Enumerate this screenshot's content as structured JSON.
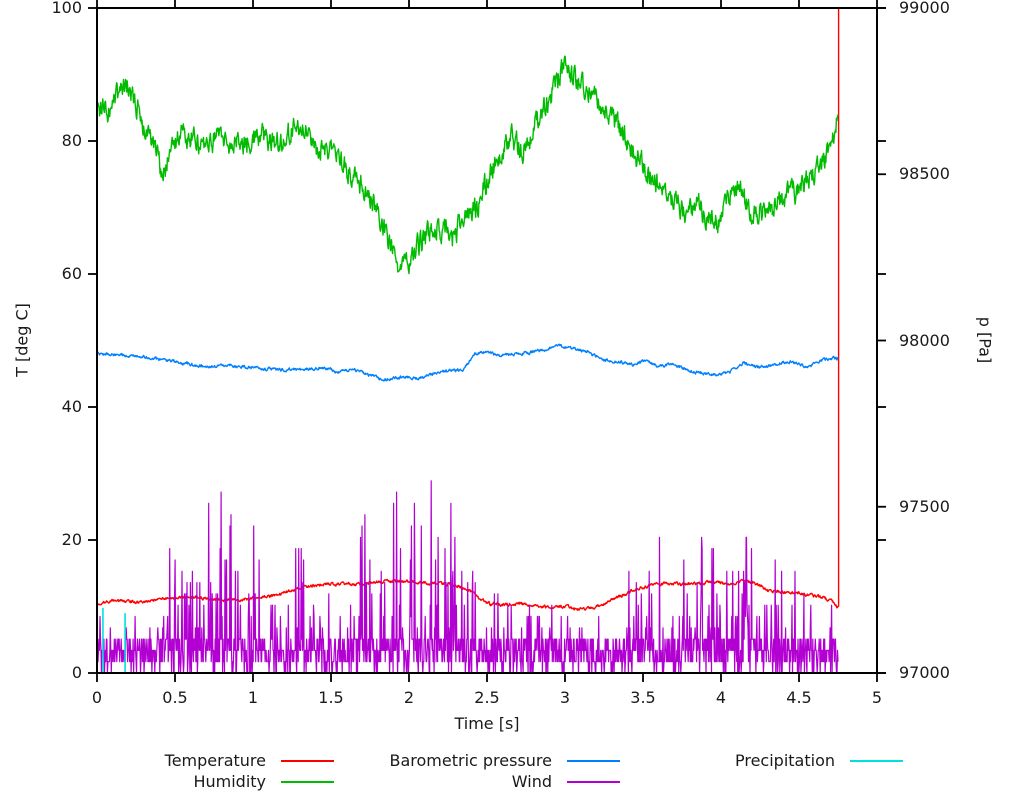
{
  "chart_data": {
    "type": "line",
    "title": "",
    "xlabel": "Time [s]",
    "ylabel_left": "T [deg C]",
    "ylabel_right": "p [Pa]",
    "x_range": [
      0,
      5
    ],
    "x_ticks": [
      0,
      0.5,
      1,
      1.5,
      2,
      2.5,
      3,
      3.5,
      4,
      4.5,
      5
    ],
    "x_tick_labels": [
      "0",
      "0.5",
      "1",
      "1.5",
      "2",
      "2.5",
      "3",
      "3.5",
      "4",
      "4.5",
      "5"
    ],
    "y_left_range": [
      0,
      100
    ],
    "y_left_ticks": [
      0,
      20,
      40,
      60,
      80,
      100
    ],
    "y_left_tick_labels": [
      "0",
      "20",
      "40",
      "60",
      "80",
      "100"
    ],
    "y_right_range": [
      97000,
      99000
    ],
    "y_right_ticks": [
      97000,
      97500,
      98000,
      98500,
      99000
    ],
    "y_right_tick_labels": [
      "97000",
      "97500",
      "98000",
      "98500",
      "99000"
    ],
    "grid": false,
    "legend_position": "bottom",
    "data_end_t": 4.75,
    "axis_color": "#000000",
    "series": [
      {
        "name": "Temperature",
        "color": "#ff0000",
        "axis": "left",
        "style": "noisy-line",
        "noise": 0.18,
        "end_spike": 100,
        "keypoints": [
          [
            0,
            10.4
          ],
          [
            0.1,
            10.9
          ],
          [
            0.2,
            10.8
          ],
          [
            0.3,
            10.6
          ],
          [
            0.4,
            11.1
          ],
          [
            0.5,
            11.3
          ],
          [
            0.6,
            11.4
          ],
          [
            0.7,
            11.2
          ],
          [
            0.8,
            11.0
          ],
          [
            0.9,
            11.0
          ],
          [
            1.0,
            11.2
          ],
          [
            1.1,
            11.5
          ],
          [
            1.2,
            12.1
          ],
          [
            1.3,
            12.8
          ],
          [
            1.4,
            13.2
          ],
          [
            1.5,
            13.4
          ],
          [
            1.6,
            13.3
          ],
          [
            1.7,
            13.4
          ],
          [
            1.8,
            13.6
          ],
          [
            1.9,
            13.8
          ],
          [
            2.0,
            13.8
          ],
          [
            2.1,
            13.6
          ],
          [
            2.2,
            13.4
          ],
          [
            2.3,
            13.2
          ],
          [
            2.38,
            12.6
          ],
          [
            2.45,
            11.2
          ],
          [
            2.52,
            10.4
          ],
          [
            2.6,
            10.3
          ],
          [
            2.7,
            10.4
          ],
          [
            2.8,
            10.1
          ],
          [
            2.9,
            9.9
          ],
          [
            3.0,
            10.0
          ],
          [
            3.1,
            9.6
          ],
          [
            3.17,
            9.7
          ],
          [
            3.25,
            10.4
          ],
          [
            3.35,
            11.5
          ],
          [
            3.45,
            12.6
          ],
          [
            3.55,
            13.2
          ],
          [
            3.65,
            13.5
          ],
          [
            3.75,
            13.3
          ],
          [
            3.85,
            13.4
          ],
          [
            3.95,
            13.7
          ],
          [
            4.05,
            13.3
          ],
          [
            4.15,
            13.9
          ],
          [
            4.22,
            13.4
          ],
          [
            4.3,
            12.4
          ],
          [
            4.4,
            12.1
          ],
          [
            4.5,
            12.0
          ],
          [
            4.6,
            11.6
          ],
          [
            4.67,
            11.2
          ],
          [
            4.72,
            10.6
          ],
          [
            4.75,
            9.9
          ]
        ]
      },
      {
        "name": "Humidity",
        "color": "#00bb00",
        "axis": "left",
        "style": "noisy-line",
        "noise": 1.3,
        "keypoints": [
          [
            0,
            85
          ],
          [
            0.07,
            84.5
          ],
          [
            0.13,
            86.5
          ],
          [
            0.18,
            88.5
          ],
          [
            0.24,
            86.5
          ],
          [
            0.3,
            81.5
          ],
          [
            0.36,
            79.5
          ],
          [
            0.42,
            74.5
          ],
          [
            0.48,
            78.5
          ],
          [
            0.55,
            81.5
          ],
          [
            0.62,
            80
          ],
          [
            0.7,
            79
          ],
          [
            0.78,
            81
          ],
          [
            0.86,
            80
          ],
          [
            0.95,
            79.5
          ],
          [
            1.05,
            81.5
          ],
          [
            1.15,
            79.5
          ],
          [
            1.25,
            81.5
          ],
          [
            1.32,
            83
          ],
          [
            1.4,
            79.5
          ],
          [
            1.48,
            78.5
          ],
          [
            1.55,
            77
          ],
          [
            1.65,
            75
          ],
          [
            1.75,
            72
          ],
          [
            1.82,
            68.5
          ],
          [
            1.88,
            64
          ],
          [
            1.95,
            60.5
          ],
          [
            2.0,
            62
          ],
          [
            2.06,
            64.5
          ],
          [
            2.12,
            66
          ],
          [
            2.2,
            67
          ],
          [
            2.28,
            65.5
          ],
          [
            2.36,
            68
          ],
          [
            2.45,
            71
          ],
          [
            2.52,
            75
          ],
          [
            2.6,
            79
          ],
          [
            2.66,
            80.5
          ],
          [
            2.72,
            78.5
          ],
          [
            2.78,
            81
          ],
          [
            2.85,
            84
          ],
          [
            2.92,
            87.5
          ],
          [
            3.0,
            91.5
          ],
          [
            3.06,
            89.5
          ],
          [
            3.15,
            88
          ],
          [
            3.25,
            85.5
          ],
          [
            3.35,
            82
          ],
          [
            3.45,
            78
          ],
          [
            3.55,
            74.5
          ],
          [
            3.63,
            72.5
          ],
          [
            3.7,
            71
          ],
          [
            3.78,
            69.5
          ],
          [
            3.85,
            70.5
          ],
          [
            3.93,
            68
          ],
          [
            4.0,
            68.5
          ],
          [
            4.06,
            72
          ],
          [
            4.12,
            72.5
          ],
          [
            4.2,
            69.5
          ],
          [
            4.3,
            69
          ],
          [
            4.4,
            71.5
          ],
          [
            4.5,
            73
          ],
          [
            4.6,
            75.5
          ],
          [
            4.68,
            78
          ],
          [
            4.73,
            81
          ],
          [
            4.75,
            84
          ]
        ]
      },
      {
        "name": "Barometric pressure",
        "color": "#0080ff",
        "axis": "right",
        "style": "noisy-line",
        "noise": 3.5,
        "keypoints": [
          [
            0,
            97962
          ],
          [
            0.15,
            97956
          ],
          [
            0.3,
            97950
          ],
          [
            0.5,
            97936
          ],
          [
            0.7,
            97920
          ],
          [
            0.85,
            97925
          ],
          [
            1.0,
            97918
          ],
          [
            1.15,
            97912
          ],
          [
            1.3,
            97913
          ],
          [
            1.45,
            97918
          ],
          [
            1.55,
            97905
          ],
          [
            1.65,
            97912
          ],
          [
            1.75,
            97895
          ],
          [
            1.85,
            97882
          ],
          [
            1.95,
            97890
          ],
          [
            2.05,
            97886
          ],
          [
            2.2,
            97905
          ],
          [
            2.35,
            97912
          ],
          [
            2.42,
            97960
          ],
          [
            2.5,
            97968
          ],
          [
            2.57,
            97955
          ],
          [
            2.65,
            97958
          ],
          [
            2.75,
            97962
          ],
          [
            2.85,
            97970
          ],
          [
            2.97,
            97986
          ],
          [
            3.05,
            97974
          ],
          [
            3.15,
            97966
          ],
          [
            3.25,
            97940
          ],
          [
            3.35,
            97936
          ],
          [
            3.45,
            97926
          ],
          [
            3.52,
            97940
          ],
          [
            3.6,
            97920
          ],
          [
            3.7,
            97930
          ],
          [
            3.8,
            97906
          ],
          [
            3.9,
            97902
          ],
          [
            3.97,
            97896
          ],
          [
            4.05,
            97905
          ],
          [
            4.15,
            97932
          ],
          [
            4.25,
            97918
          ],
          [
            4.35,
            97930
          ],
          [
            4.45,
            97936
          ],
          [
            4.55,
            97920
          ],
          [
            4.65,
            97940
          ],
          [
            4.72,
            97948
          ],
          [
            4.75,
            97946
          ]
        ]
      },
      {
        "name": "Wind",
        "color": "#b200d2",
        "axis": "left",
        "style": "spiky",
        "quantum": 1.7,
        "envelope": [
          [
            0,
            9
          ],
          [
            0.4,
            10
          ],
          [
            0.5,
            25
          ],
          [
            0.62,
            22
          ],
          [
            0.75,
            30
          ],
          [
            0.91,
            34
          ],
          [
            1.0,
            25
          ],
          [
            1.15,
            20
          ],
          [
            1.3,
            20
          ],
          [
            1.45,
            13
          ],
          [
            1.55,
            15
          ],
          [
            1.65,
            25
          ],
          [
            1.75,
            30
          ],
          [
            1.9,
            26
          ],
          [
            2.0,
            31
          ],
          [
            2.15,
            29
          ],
          [
            2.3,
            29
          ],
          [
            2.42,
            28
          ],
          [
            2.5,
            14
          ],
          [
            2.6,
            11
          ],
          [
            2.75,
            10
          ],
          [
            2.9,
            12
          ],
          [
            3.05,
            9
          ],
          [
            3.2,
            10
          ],
          [
            3.35,
            13
          ],
          [
            3.45,
            25
          ],
          [
            3.6,
            22
          ],
          [
            3.7,
            17
          ],
          [
            3.85,
            21
          ],
          [
            4.0,
            21
          ],
          [
            4.1,
            20
          ],
          [
            4.2,
            22
          ],
          [
            4.35,
            17
          ],
          [
            4.5,
            17
          ],
          [
            4.6,
            15
          ],
          [
            4.7,
            14
          ],
          [
            4.75,
            9
          ]
        ]
      },
      {
        "name": "Precipitation",
        "color": "#00e0e0",
        "axis": "left",
        "style": "impulses",
        "impulses": [
          [
            0.038,
            9.8
          ],
          [
            0.18,
            9.0
          ]
        ]
      }
    ],
    "legend_columns": [
      [
        {
          "label": "Temperature",
          "color": "#ff0000"
        },
        {
          "label": "Humidity",
          "color": "#00bb00"
        }
      ],
      [
        {
          "label": "Barometric pressure",
          "color": "#0080ff"
        },
        {
          "label": "Wind",
          "color": "#b200d2"
        }
      ],
      [
        {
          "label": "Precipitation",
          "color": "#00e0e0"
        }
      ]
    ]
  }
}
